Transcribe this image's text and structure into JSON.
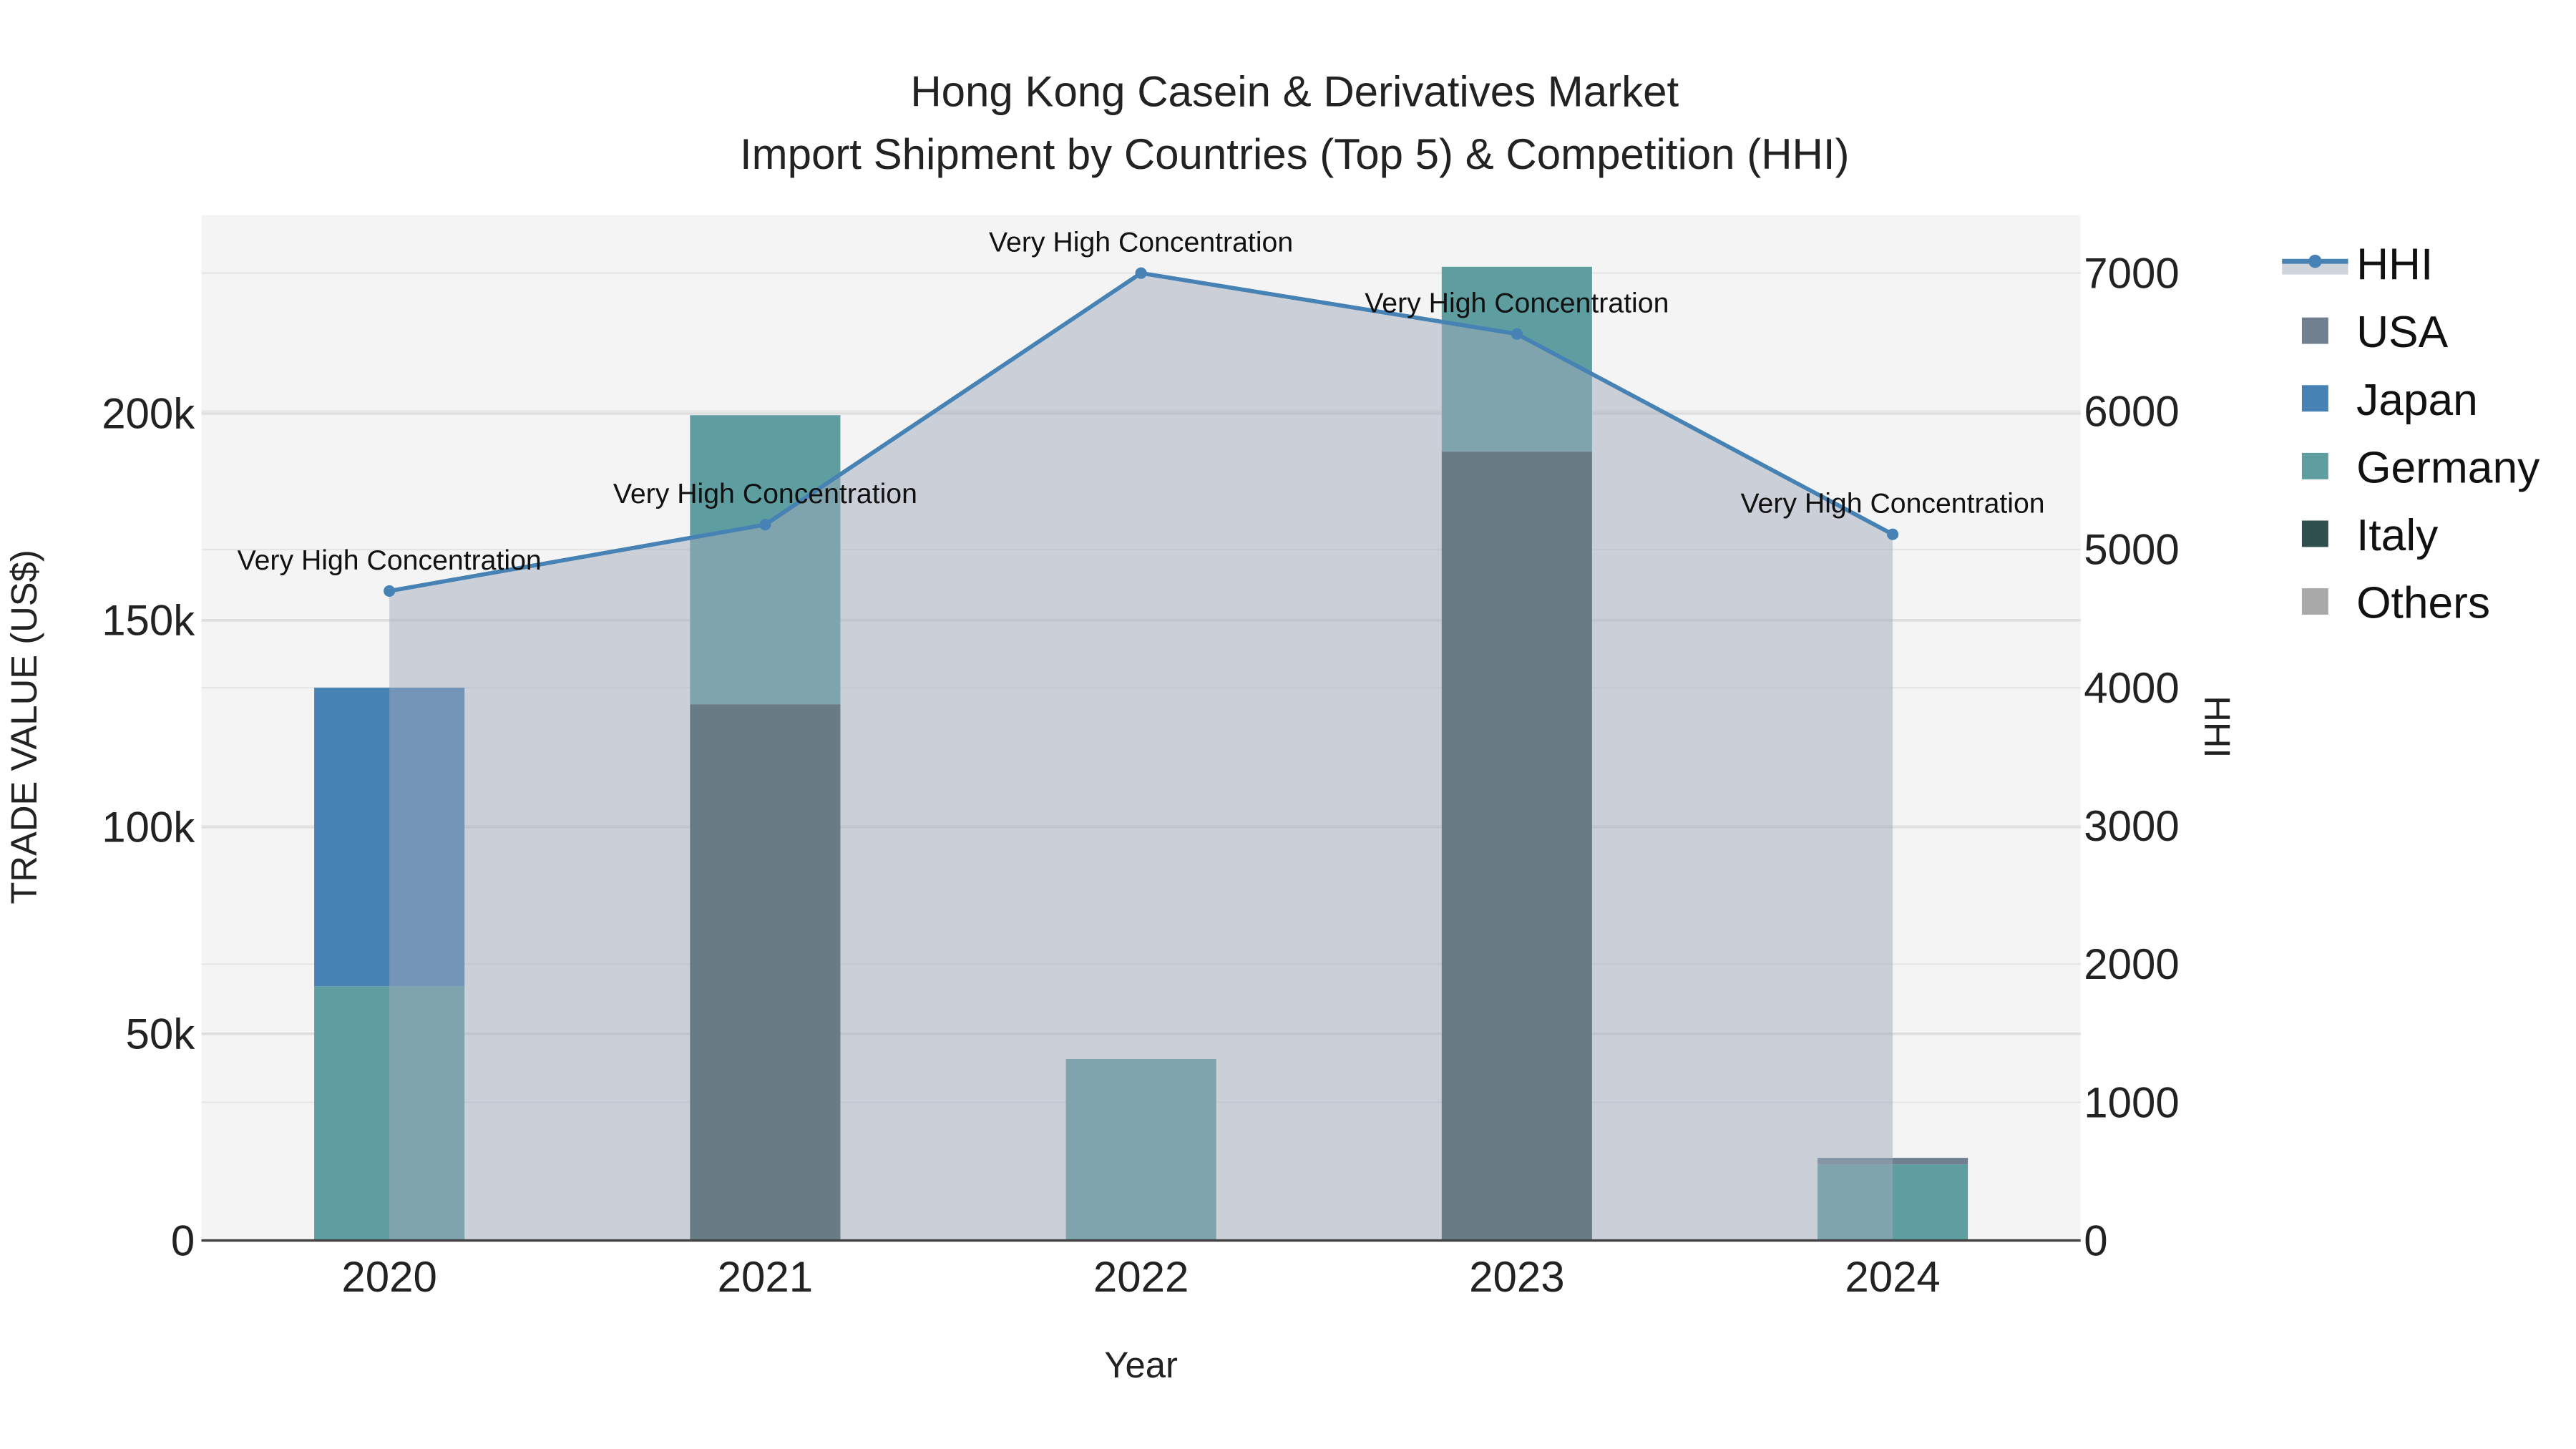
{
  "chart_data": {
    "type": "bar",
    "title": "Hong Kong Casein & Derivatives Market",
    "subtitle": "Import Shipment by Countries (Top 5) & Competition (HHI)",
    "xlabel": "Year",
    "ylabel": "TRADE VALUE (US$)",
    "y2label": "HHI",
    "categories": [
      "2020",
      "2021",
      "2022",
      "2023",
      "2024"
    ],
    "ylim": [
      0,
      248000
    ],
    "y2lim": [
      0,
      7420
    ],
    "yticks": [
      0,
      50000,
      100000,
      150000,
      200000
    ],
    "ytick_labels": [
      "0",
      "50k",
      "100k",
      "150k",
      "200k"
    ],
    "y2ticks": [
      0,
      1000,
      2000,
      3000,
      4000,
      5000,
      6000,
      7000
    ],
    "y2tick_labels": [
      "0",
      "1000",
      "2000",
      "3000",
      "4000",
      "5000",
      "6000",
      "7000"
    ],
    "barmode": "stack",
    "series": [
      {
        "name": "Italy",
        "color": "#2f4f4f",
        "values": [
          0,
          129700,
          0,
          190800,
          0
        ]
      },
      {
        "name": "Germany",
        "color": "#5f9ea0",
        "values": [
          61500,
          69900,
          43900,
          44700,
          18400
        ]
      },
      {
        "name": "Japan",
        "color": "#4682b4",
        "values": [
          72200,
          0,
          0,
          0,
          0
        ]
      },
      {
        "name": "USA",
        "color": "#708090",
        "values": [
          0,
          0,
          0,
          0,
          1600
        ]
      },
      {
        "name": "Others",
        "color": "#a9a9a9",
        "values": [
          0,
          0,
          0,
          0,
          0
        ]
      }
    ],
    "line": {
      "name": "HHI",
      "color": "#4682b4",
      "fill": "#a0aabb",
      "values": [
        4700,
        5180,
        7000,
        6560,
        5110
      ],
      "annotations": [
        "Very High Concentration",
        "Very High Concentration",
        "Very High Concentration",
        "Very High Concentration",
        "Very High Concentration"
      ]
    },
    "legend": [
      "HHI",
      "USA",
      "Japan",
      "Germany",
      "Italy",
      "Others"
    ],
    "legend_position": "right",
    "grid": true
  }
}
